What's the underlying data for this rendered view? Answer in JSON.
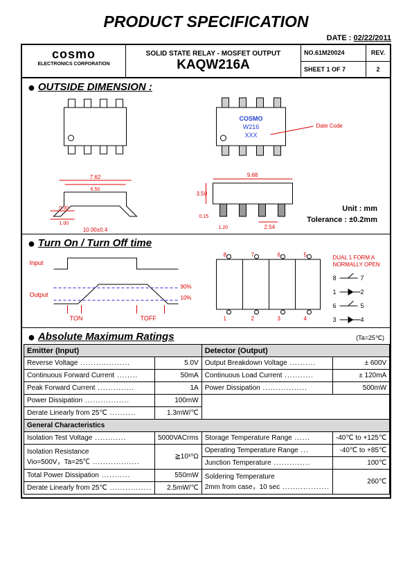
{
  "title": "PRODUCT SPECIFICATION",
  "date_label": "DATE :",
  "date": "02/22/2011",
  "company": {
    "name": "cosmo",
    "sub": "ELECTRONICS CORPORATION"
  },
  "header": {
    "subtitle": "SOLID STATE RELAY - MOSFET OUTPUT",
    "part": "KAQW216A",
    "doc_no_label": "NO.",
    "doc_no": "61M20024",
    "rev_label": "REV.",
    "rev": "2",
    "sheet": "SHEET 1 OF 7"
  },
  "sections": {
    "dim": "OUTSIDE DIMENSION :",
    "timing": "Turn On / Turn Off time",
    "ratings": "Absolute Maximum Ratings"
  },
  "dim": {
    "unit": "Unit : mm",
    "tolerance": "Tolerance : ±0.2mm",
    "chip_label1": "COSMO",
    "chip_label2": "W216",
    "chip_label3": "XXX",
    "date_code": "Date Code",
    "d1": "7.62",
    "d2": "6.50",
    "d3": "0.30",
    "d4": "1.00",
    "d5": "10.00±0.4",
    "d6": "9.68",
    "d7": "3.50",
    "d8": "2.54",
    "d9": "0.15",
    "d10": "1.20"
  },
  "timing": {
    "input": "Input",
    "output": "Output",
    "ton": "TON",
    "toff": "TOFF",
    "p90": "90%",
    "p10": "10%",
    "dual": "DUAL 1 FORM A",
    "norm": "NORMALLY OPEN",
    "pins": {
      "p1": "1",
      "p2": "2",
      "p3": "3",
      "p4": "4",
      "p5": "5",
      "p6": "6",
      "p7": "7",
      "p8": "8"
    }
  },
  "ta_note": "(Ta=25℃)",
  "ratings": {
    "emitter_header": "Emitter (Input)",
    "detector_header": "Detector (Output)",
    "general_header": "General Characteristics",
    "rows_left_top": [
      {
        "l": "Reverse Voltage",
        "v": "5.0V"
      },
      {
        "l": "Continuous Forward Current",
        "v": "50mA"
      },
      {
        "l": "Peak Forward Current",
        "v": "1A"
      },
      {
        "l": "Power Dissipation",
        "v": "100mW"
      },
      {
        "l": "Derate Linearly from 25℃",
        "v": "1.3mW/℃"
      }
    ],
    "rows_right_top": [
      {
        "l": "Output Breakdown Voltage",
        "v": "± 600V"
      },
      {
        "l": "Continuous Load Current",
        "v": "± 120mA"
      },
      {
        "l": "Power Dissipation",
        "v": "500mW"
      }
    ],
    "rows_left_bot": [
      {
        "l": "Isolation Test Voltage",
        "v": "5000VACrms"
      },
      {
        "l": "Isolation Resistance",
        "l2": "Vio=500V，Ta=25℃",
        "v": "≧10¹⁰Ω"
      },
      {
        "l": "Total Power Dissipation",
        "v": "550mW"
      },
      {
        "l": "Derate Linearly from 25℃",
        "v": "2.5mW/℃"
      }
    ],
    "rows_right_bot": [
      {
        "l": "Storage Temperature Range",
        "v": "-40℃ to +125℃"
      },
      {
        "l": "Operating Temperature Range",
        "v": "-40℃ to +85℃"
      },
      {
        "l": "Junction Temperature",
        "v": "100℃"
      },
      {
        "l": "Soldering Temperature",
        "l2": "2mm from case，10 sec",
        "v": "260℃"
      }
    ]
  }
}
